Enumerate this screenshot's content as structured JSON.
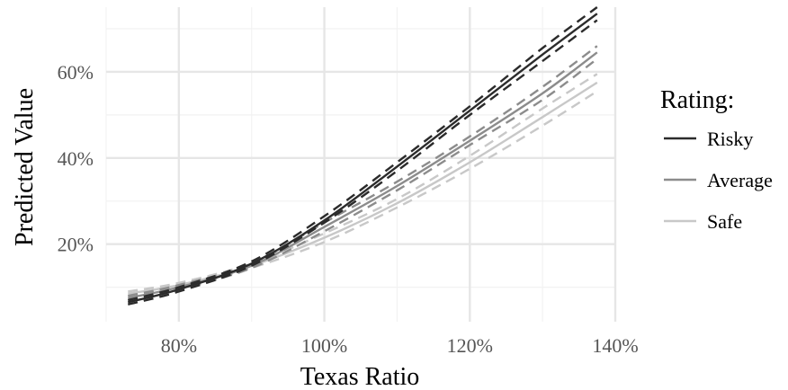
{
  "chart_data": {
    "type": "line",
    "xlabel": "Texas Ratio",
    "ylabel": "Predicted Value",
    "xlim": [
      70,
      140
    ],
    "ylim": [
      2,
      75
    ],
    "x_ticks": [
      80,
      100,
      120,
      140
    ],
    "x_tick_labels": [
      "80%",
      "100%",
      "120%",
      "140%"
    ],
    "y_ticks": [
      20,
      40,
      60
    ],
    "y_tick_labels": [
      "20%",
      "40%",
      "60%"
    ],
    "grid": true,
    "legend": {
      "title": "Rating:",
      "position": "right"
    },
    "x": [
      73,
      80,
      90,
      100,
      110,
      120,
      130,
      137.5
    ],
    "series": [
      {
        "name": "Risky",
        "color": "#2b2b2b",
        "values": [
          6.5,
          9.5,
          15.5,
          25.5,
          38.0,
          51.0,
          64.0,
          73.5
        ],
        "lower": [
          6.0,
          9.0,
          15.0,
          25.0,
          37.0,
          50.0,
          62.5,
          72.0
        ],
        "upper": [
          7.0,
          10.0,
          16.0,
          26.5,
          39.0,
          52.0,
          65.5,
          75.0
        ]
      },
      {
        "name": "Average",
        "color": "#8c8c8c",
        "values": [
          7.5,
          10.0,
          15.0,
          24.0,
          33.5,
          44.0,
          55.0,
          64.5
        ],
        "lower": [
          7.0,
          9.5,
          14.5,
          23.0,
          32.5,
          43.0,
          53.5,
          63.0
        ],
        "upper": [
          8.0,
          10.5,
          15.5,
          25.0,
          34.5,
          45.0,
          56.5,
          66.0
        ]
      },
      {
        "name": "Safe",
        "color": "#c8c8c8",
        "values": [
          8.5,
          10.5,
          15.0,
          21.5,
          29.5,
          39.0,
          49.5,
          57.5
        ],
        "lower": [
          8.0,
          10.0,
          14.5,
          20.5,
          28.5,
          37.5,
          47.5,
          55.5
        ],
        "upper": [
          9.0,
          11.0,
          15.5,
          22.5,
          30.5,
          40.5,
          51.5,
          59.5
        ]
      }
    ]
  }
}
